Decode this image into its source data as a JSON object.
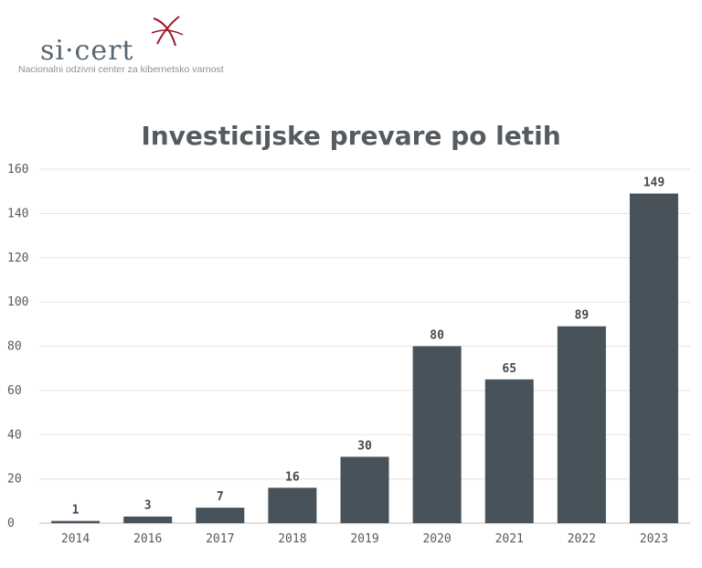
{
  "logo": {
    "wordmark": "si·cert",
    "subtitle": "Nacionalni odzivni center za kibernetsko varnost",
    "accent": "#9a1b2e"
  },
  "colors": {
    "bar": "#48525a"
  },
  "chart_data": {
    "type": "bar",
    "title": "Investicijske prevare po letih",
    "categories": [
      "2014",
      "2016",
      "2017",
      "2018",
      "2019",
      "2020",
      "2021",
      "2022",
      "2023"
    ],
    "values": [
      1,
      3,
      7,
      16,
      30,
      80,
      65,
      89,
      149
    ],
    "xlabel": "",
    "ylabel": "",
    "ylim": [
      0,
      160
    ],
    "yticks": [
      0,
      20,
      40,
      60,
      80,
      100,
      120,
      140,
      160
    ],
    "grid": true,
    "legend": false,
    "data_labels": true
  }
}
